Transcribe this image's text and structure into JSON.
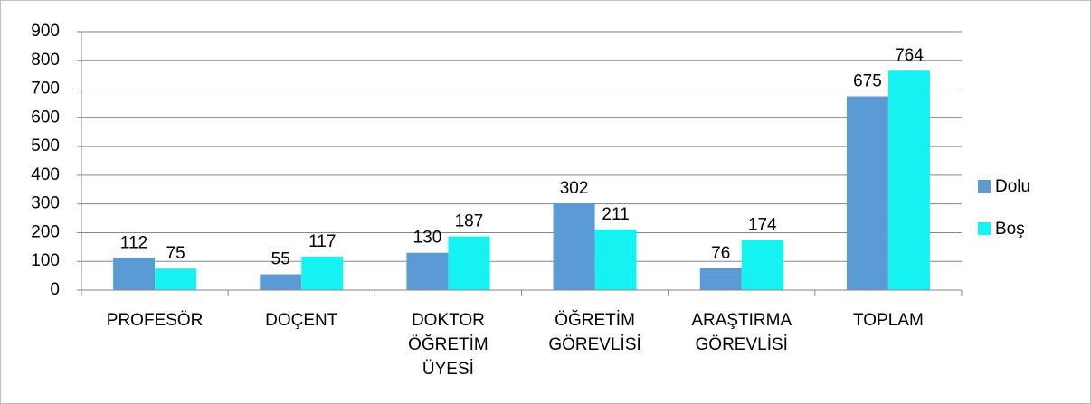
{
  "chart_data": {
    "type": "bar",
    "categories": [
      "PROFESÖR",
      "DOÇENT",
      "DOKTOR ÖĞRETİM ÜYESİ",
      "ÖĞRETİM GÖREVLİSİ",
      "ARAŞTIRMA GÖREVLİSİ",
      "TOPLAM"
    ],
    "series": [
      {
        "name": "Dolu",
        "color": "#5b9bd5",
        "values": [
          112,
          55,
          130,
          302,
          76,
          675
        ]
      },
      {
        "name": "Boş",
        "color": "#14f2f2",
        "values": [
          75,
          117,
          187,
          211,
          174,
          764
        ]
      }
    ],
    "ylim": [
      0,
      900
    ],
    "yticks": [
      0,
      100,
      200,
      300,
      400,
      500,
      600,
      700,
      800,
      900
    ],
    "grid": true,
    "legend": "right"
  }
}
